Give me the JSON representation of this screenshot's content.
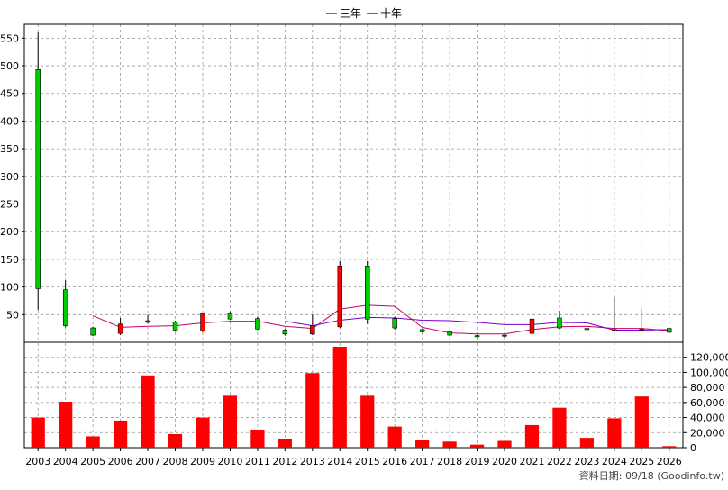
{
  "chart_data": {
    "type": "candlestick",
    "title": "",
    "legend": {
      "placement": "top-center",
      "items": [
        {
          "label": "三年",
          "color": "#cc0066"
        },
        {
          "label": "十年",
          "color": "#7700cc"
        }
      ]
    },
    "grid": true,
    "x_labels": [
      "2003",
      "2004",
      "2005",
      "2006",
      "2007",
      "2008",
      "2009",
      "2010",
      "2011",
      "2012",
      "2013",
      "2014",
      "2015",
      "2016",
      "2017",
      "2018",
      "2019",
      "2020",
      "2021",
      "2022",
      "2023",
      "2024",
      "2025",
      "2026"
    ],
    "price": {
      "ylim": [
        0,
        575
      ],
      "yticks": [
        50,
        100,
        150,
        200,
        250,
        300,
        350,
        400,
        450,
        500,
        550
      ],
      "up_color": "#ff0000",
      "down_color": "#00cc00",
      "candles": [
        {
          "x": "2003",
          "open": 493,
          "close": 97,
          "high": 561,
          "low": 58
        },
        {
          "x": "2004",
          "open": 95,
          "close": 30,
          "high": 112,
          "low": 27
        },
        {
          "x": "2005",
          "open": 26,
          "close": 13,
          "high": 28,
          "low": 11
        },
        {
          "x": "2006",
          "open": 16,
          "close": 33,
          "high": 44,
          "low": 13
        },
        {
          "x": "2007",
          "open": 36,
          "close": 39,
          "high": 50,
          "low": 34
        },
        {
          "x": "2008",
          "open": 37,
          "close": 22,
          "high": 39,
          "low": 19
        },
        {
          "x": "2009",
          "open": 20,
          "close": 52,
          "high": 54,
          "low": 18
        },
        {
          "x": "2010",
          "open": 52,
          "close": 42,
          "high": 56,
          "low": 40
        },
        {
          "x": "2011",
          "open": 43,
          "close": 24,
          "high": 46,
          "low": 22
        },
        {
          "x": "2012",
          "open": 22,
          "close": 15,
          "high": 24,
          "low": 12
        },
        {
          "x": "2013",
          "open": 15,
          "close": 30,
          "high": 50,
          "low": 13
        },
        {
          "x": "2014",
          "open": 28,
          "close": 138,
          "high": 147,
          "low": 26
        },
        {
          "x": "2015",
          "open": 138,
          "close": 42,
          "high": 147,
          "low": 33
        },
        {
          "x": "2016",
          "open": 43,
          "close": 26,
          "high": 46,
          "low": 23
        },
        {
          "x": "2017",
          "open": 23,
          "close": 19,
          "high": 24,
          "low": 18
        },
        {
          "x": "2018",
          "open": 19,
          "close": 13,
          "high": 21,
          "low": 11
        },
        {
          "x": "2019",
          "open": 12,
          "close": 11,
          "high": 13,
          "low": 9
        },
        {
          "x": "2020",
          "open": 11,
          "close": 13,
          "high": 14,
          "low": 8
        },
        {
          "x": "2021",
          "open": 16,
          "close": 42,
          "high": 44,
          "low": 15
        },
        {
          "x": "2022",
          "open": 44,
          "close": 26,
          "high": 57,
          "low": 24
        },
        {
          "x": "2023",
          "open": 25,
          "close": 23,
          "high": 27,
          "low": 19
        },
        {
          "x": "2024",
          "open": 23,
          "close": 23,
          "high": 82,
          "low": 20
        },
        {
          "x": "2025",
          "open": 24,
          "close": 22,
          "high": 62,
          "low": 18
        },
        {
          "x": "2026",
          "open": 25,
          "close": 18,
          "high": 27,
          "low": 17
        }
      ],
      "series": [
        {
          "name": "三年",
          "color": "#cc0066",
          "x": [
            "2005",
            "2006",
            "2007",
            "2008",
            "2009",
            "2010",
            "2011",
            "2012",
            "2013",
            "2014",
            "2015",
            "2016",
            "2017",
            "2018",
            "2019",
            "2020",
            "2021",
            "2022",
            "2023",
            "2024",
            "2025",
            "2026"
          ],
          "values": [
            48,
            27,
            29,
            30,
            35,
            38,
            38,
            29,
            25,
            60,
            67,
            65,
            27,
            17,
            15,
            15,
            23,
            28,
            29,
            25,
            25,
            21
          ]
        },
        {
          "name": "十年",
          "color": "#7700cc",
          "x": [
            "2012",
            "2013",
            "2014",
            "2015",
            "2016",
            "2017",
            "2018",
            "2019",
            "2020",
            "2021",
            "2022",
            "2023",
            "2024",
            "2025",
            "2026"
          ],
          "values": [
            38,
            30,
            40,
            45,
            44,
            40,
            39,
            36,
            32,
            32,
            36,
            35,
            22,
            22,
            23
          ]
        }
      ]
    },
    "volume": {
      "ylim": [
        0,
        140000
      ],
      "yticks": [
        0,
        20000,
        40000,
        60000,
        80000,
        100000,
        120000
      ],
      "ytick_labels": [
        "0",
        "20,000",
        "40,000",
        "60,000",
        "80,000",
        "100,000",
        "120,000"
      ],
      "color": "#ff0000",
      "values": [
        40000,
        61000,
        15000,
        36000,
        96000,
        18000,
        40000,
        69000,
        24000,
        12000,
        99000,
        134000,
        69000,
        28000,
        10000,
        8000,
        4000,
        9000,
        30000,
        53000,
        13000,
        39000,
        68000,
        2000
      ]
    }
  },
  "credit": "資料日期: 09/18 (Goodinfo.tw)"
}
